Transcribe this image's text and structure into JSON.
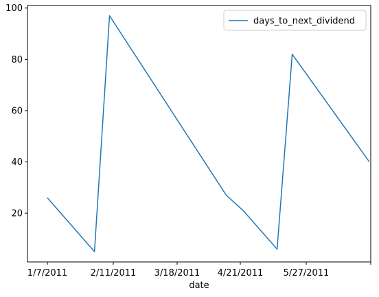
{
  "chart_data": {
    "type": "line",
    "xlabel": "date",
    "ylabel": "",
    "x_tick_labels": [
      "1/7/2011",
      "2/11/2011",
      "3/18/2011",
      "4/21/2011",
      "5/27/2011",
      ""
    ],
    "y_ticks": [
      20,
      40,
      60,
      80,
      100
    ],
    "ylim": [
      1,
      101
    ],
    "legend_position": "top-right",
    "series": [
      {
        "name": "days_to_next_dividend",
        "color": "#1f77b4",
        "x": [
          "1/7/2011",
          "2/1/2011",
          "2/9/2011",
          "4/12/2011",
          "4/21/2011",
          "5/9/2011",
          "5/17/2011",
          "6/27/2011"
        ],
        "values": [
          26,
          5,
          97,
          27,
          21,
          6,
          82,
          40
        ]
      }
    ]
  }
}
